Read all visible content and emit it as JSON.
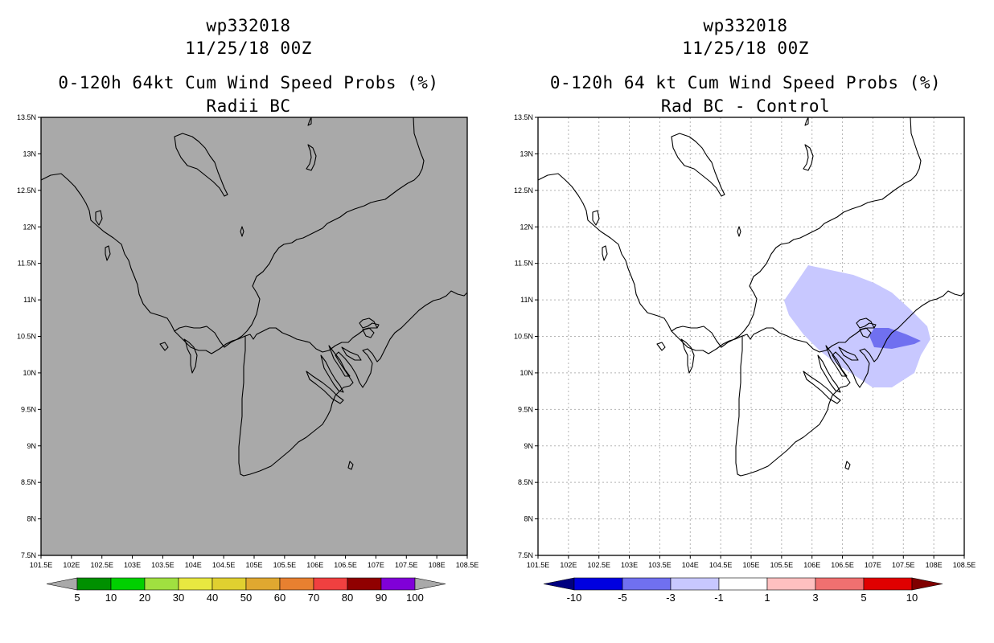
{
  "left_panel": {
    "storm_id": "wp332018",
    "datetime": "11/25/18 00Z",
    "product_title": "0-120h 64kt Cum Wind Speed Probs (%)",
    "subtitle": "Radii BC",
    "map_fill_color": "#a9a9a9",
    "colorbar": {
      "labels": [
        "5",
        "10",
        "20",
        "30",
        "40",
        "50",
        "60",
        "70",
        "80",
        "90",
        "100"
      ],
      "colors": [
        "#a9a9a9",
        "#009000",
        "#00d000",
        "#a0e040",
        "#e8e840",
        "#e0d030",
        "#e0a830",
        "#e88030",
        "#f04040",
        "#900000",
        "#8000d8",
        "#a9a9a9"
      ]
    }
  },
  "right_panel": {
    "storm_id": "wp332018",
    "datetime": "11/25/18 00Z",
    "product_title": "0-120h 64 kt Cum Wind Speed Probs (%)",
    "subtitle": "Rad BC - Control",
    "colorbar": {
      "labels": [
        "-10",
        "-5",
        "-3",
        "-1",
        "1",
        "3",
        "5",
        "10"
      ],
      "colors": [
        "#000080",
        "#0000e0",
        "#7070f0",
        "#c8c8ff",
        "#ffffff",
        "#ffc0c0",
        "#f07070",
        "#e00000",
        "#800000"
      ]
    },
    "diff_regions": [
      {
        "level": "-3 to -1",
        "color": "#c8c8ff"
      },
      {
        "level": "-5 to -3",
        "color": "#7070f0"
      }
    ]
  },
  "map": {
    "lat_labels": [
      "13.5N",
      "13N",
      "12.5N",
      "12N",
      "11.5N",
      "11N",
      "10.5N",
      "10N",
      "9.5N",
      "9N",
      "8.5N",
      "8N",
      "7.5N"
    ],
    "lon_labels": [
      "101.5E",
      "102E",
      "102.5E",
      "103E",
      "103.5E",
      "104E",
      "104.5E",
      "105E",
      "105.5E",
      "106E",
      "106.5E",
      "107E",
      "107.5E",
      "108E",
      "108.5E"
    ],
    "lat_range": [
      7.5,
      13.5
    ],
    "lon_range": [
      101.5,
      108.5
    ]
  }
}
